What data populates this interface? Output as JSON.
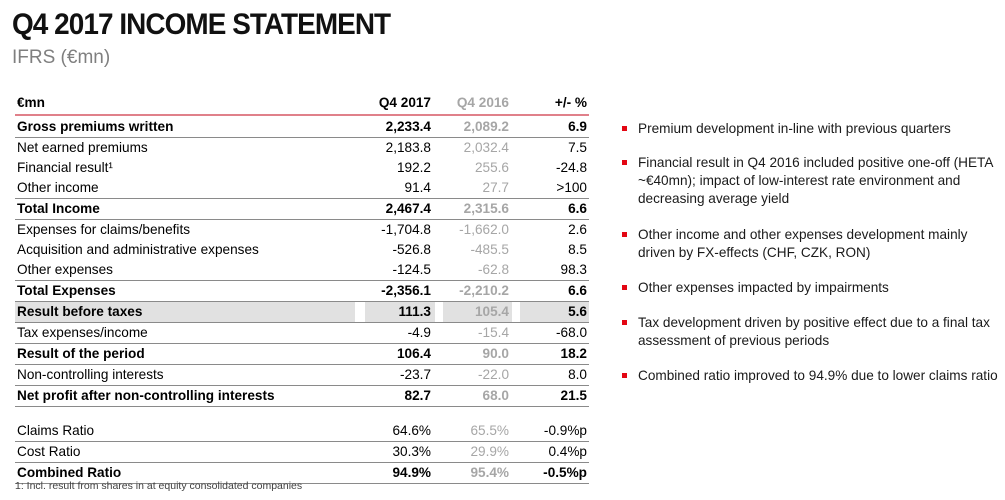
{
  "header": {
    "title": "Q4 2017 INCOME STATEMENT",
    "subtitle": "IFRS (€mn)"
  },
  "table": {
    "columns": [
      "€mn",
      "Q4 2017",
      "Q4 2016",
      "+/- %"
    ],
    "rows": [
      {
        "label": "Gross premiums written",
        "q4_2017": "2,233.4",
        "q4_2016": "2,089.2",
        "change": "6.9",
        "bold": true
      },
      {
        "label": "Net earned premiums",
        "q4_2017": "2,183.8",
        "q4_2016": "2,032.4",
        "change": "7.5"
      },
      {
        "label": "Financial result¹",
        "q4_2017": "192.2",
        "q4_2016": "255.6",
        "change": "-24.8"
      },
      {
        "label": "Other income",
        "q4_2017": "91.4",
        "q4_2016": "27.7",
        "change": ">100"
      },
      {
        "label": "Total Income",
        "q4_2017": "2,467.4",
        "q4_2016": "2,315.6",
        "change": "6.6",
        "bold": true
      },
      {
        "label": "Expenses for claims/benefits",
        "q4_2017": "-1,704.8",
        "q4_2016": "-1,662.0",
        "change": "2.6"
      },
      {
        "label": "Acquisition and administrative expenses",
        "q4_2017": "-526.8",
        "q4_2016": "-485.5",
        "change": "8.5"
      },
      {
        "label": "Other expenses",
        "q4_2017": "-124.5",
        "q4_2016": "-62.8",
        "change": "98.3"
      },
      {
        "label": "Total Expenses",
        "q4_2017": "-2,356.1",
        "q4_2016": "-2,210.2",
        "change": "6.6",
        "bold": true
      },
      {
        "label": "Result before taxes",
        "q4_2017": "111.3",
        "q4_2016": "105.4",
        "change": "5.6",
        "bold": true,
        "shaded": true
      },
      {
        "label": "Tax expenses/income",
        "q4_2017": "-4.9",
        "q4_2016": "-15.4",
        "change": "-68.0"
      },
      {
        "label": "Result of the period",
        "q4_2017": "106.4",
        "q4_2016": "90.0",
        "change": "18.2",
        "bold": true
      },
      {
        "label": "Non-controlling interests",
        "q4_2017": "-23.7",
        "q4_2016": "-22.0",
        "change": "8.0"
      },
      {
        "label": "Net profit after non-controlling interests",
        "q4_2017": "82.7",
        "q4_2016": "68.0",
        "change": "21.5",
        "bold": true
      }
    ],
    "ratios": [
      {
        "label": "Claims Ratio",
        "q4_2017": "64.6%",
        "q4_2016": "65.5%",
        "change": "-0.9%p"
      },
      {
        "label": "Cost Ratio",
        "q4_2017": "30.3%",
        "q4_2016": "29.9%",
        "change": "0.4%p"
      },
      {
        "label": "Combined Ratio",
        "q4_2017": "94.9%",
        "q4_2016": "95.4%",
        "change": "-0.5%p",
        "bold": true
      }
    ],
    "footnote": "1: Incl. result from shares in at equity consolidated companies"
  },
  "bullets": [
    "Premium development in-line with previous quarters",
    "Financial result in Q4 2016 included positive one-off (HETA ~€40mn); impact of low-interest rate environment and decreasing average yield",
    "Other income and other expenses development mainly driven by FX-effects (CHF, CZK, RON)",
    "Other expenses impacted by impairments",
    "Tax development driven by positive effect due to a final tax assessment of previous periods",
    "Combined ratio improved to 94.9% due to lower claims ratio"
  ],
  "colors": {
    "accent": "#e30613",
    "header_line": "#e0808a",
    "shade": "#e1e1e1",
    "muted": "#a6a6a6"
  }
}
